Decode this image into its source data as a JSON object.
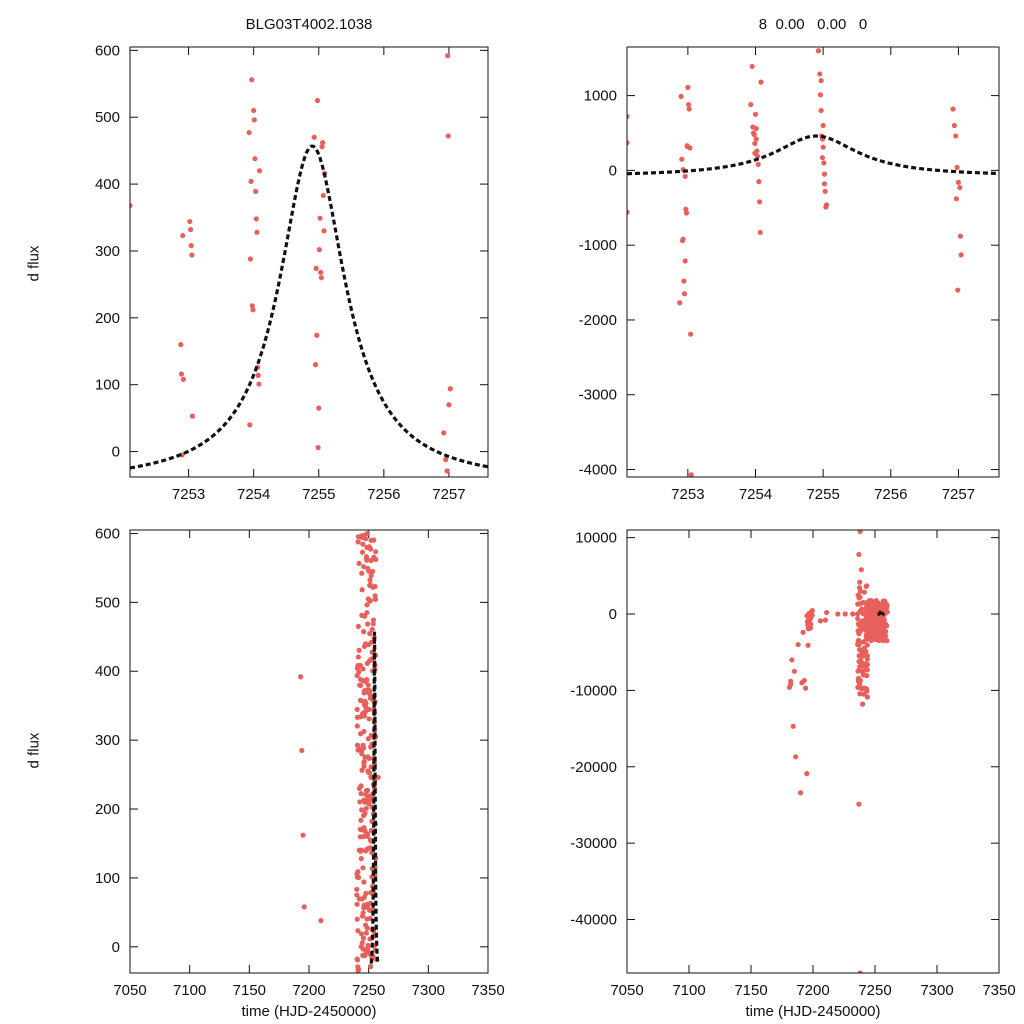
{
  "titles": {
    "left": "BLG03T4002.1038",
    "right": "8  0.00   0.00   0"
  },
  "colors": {
    "points": "#e8605c",
    "model": "#111111",
    "frame": "#111111"
  },
  "chart_data": [
    {
      "type": "scatter",
      "title": "BLG03T4002.1038",
      "xlabel": "",
      "ylabel": "d flux",
      "xlim": [
        7252.1,
        7257.6
      ],
      "ylim": [
        -38,
        605
      ],
      "xticks": [
        7253,
        7254,
        7255,
        7256,
        7257
      ],
      "yticks": [
        0,
        100,
        200,
        300,
        400,
        500,
        600
      ],
      "grid": false,
      "series": [
        {
          "x": [
            7252.1,
            7252.88,
            7252.89,
            7252.9,
            7252.91,
            7252.92,
            7253.02,
            7253.03,
            7253.04,
            7253.05,
            7253.06,
            7253.93,
            7253.94,
            7253.95,
            7253.96,
            7253.97,
            7253.98,
            7253.99,
            7254.0,
            7254.01,
            7254.02,
            7254.03,
            7254.04,
            7254.05,
            7254.06,
            7254.07,
            7254.08,
            7254.09,
            7254.93,
            7254.95,
            7254.96,
            7254.97,
            7254.98,
            7254.99,
            7255.0,
            7255.01,
            7255.02,
            7255.03,
            7255.04,
            7255.05,
            7255.06,
            7255.07,
            7255.08,
            7255.09,
            7256.92,
            7256.95,
            7256.97,
            7256.98,
            7256.99,
            7257.0,
            7257.02
          ],
          "y": [
            368,
            160,
            116,
            -5,
            323,
            108,
            344,
            332,
            308,
            294,
            53,
            477,
            40,
            288,
            404,
            556,
            218,
            212,
            510,
            496,
            438,
            389,
            348,
            328,
            126,
            114,
            101,
            420,
            470,
            130,
            274,
            174,
            525,
            6,
            65,
            302,
            349,
            268,
            260,
            456,
            462,
            383,
            330,
            416,
            28,
            -12,
            -29,
            592,
            472,
            70,
            94
          ]
        }
      ],
      "model": {
        "t0": 7254.9,
        "peak": 457,
        "width": 0.62,
        "baseline": -48
      }
    },
    {
      "type": "scatter",
      "title": "8  0.00   0.00   0",
      "xlabel": "",
      "ylabel": "",
      "xlim": [
        7252.1,
        7257.6
      ],
      "ylim": [
        -4100,
        1650
      ],
      "xticks": [
        7253,
        7254,
        7255,
        7256,
        7257
      ],
      "yticks": [
        -4000,
        -3000,
        -2000,
        -1000,
        0,
        1000
      ],
      "grid": false,
      "series": [
        {
          "x": [
            7252.1,
            7252.1,
            7252.1,
            7252.88,
            7252.9,
            7252.91,
            7252.92,
            7252.93,
            7252.94,
            7252.95,
            7252.96,
            7252.97,
            7252.98,
            7252.99,
            7253.0,
            7253.01,
            7253.02,
            7253.03,
            7253.04,
            7253.05,
            7252.99,
            7252.96,
            7252.93,
            7253.93,
            7253.95,
            7253.96,
            7253.97,
            7253.98,
            7253.99,
            7254.0,
            7254.01,
            7254.02,
            7254.03,
            7254.04,
            7254.05,
            7254.06,
            7254.07,
            7254.08,
            7253.99,
            7254.01,
            7254.93,
            7254.95,
            7254.96,
            7254.97,
            7254.98,
            7254.99,
            7255.0,
            7255.01,
            7255.02,
            7255.03,
            7255.04,
            7255.05,
            7254.97,
            7255.0,
            7255.02,
            7254.99,
            7256.92,
            7256.94,
            7256.96,
            7256.98,
            7257.0,
            7257.02,
            7257.03,
            7257.04,
            7256.99,
            7256.97
          ],
          "y": [
            720,
            370,
            -560,
            -1770,
            990,
            150,
            -940,
            -920,
            -1480,
            -1650,
            -1210,
            -520,
            -570,
            330,
            1110,
            880,
            820,
            300,
            -2190,
            -4070,
            320,
            -80,
            10,
            880,
            1390,
            580,
            500,
            480,
            360,
            750,
            420,
            260,
            190,
            80,
            -150,
            -420,
            -830,
            1180,
            230,
            560,
            1600,
            1290,
            1010,
            800,
            460,
            420,
            310,
            100,
            -180,
            -280,
            -490,
            -460,
            1200,
            600,
            -50,
            170,
            820,
            600,
            460,
            40,
            -160,
            -230,
            -880,
            -1130,
            -1600,
            -380
          ]
        }
      ],
      "model": {
        "t0": 7254.9,
        "peak": 460,
        "width": 0.75,
        "baseline": -80
      }
    },
    {
      "type": "scatter",
      "title": "",
      "xlabel": "time (HJD-2450000)",
      "ylabel": "d flux",
      "xlim": [
        7050,
        7350
      ],
      "ylim": [
        -38,
        605
      ],
      "xticks": [
        7050,
        7100,
        7150,
        7200,
        7250,
        7300,
        7350
      ],
      "yticks": [
        0,
        100,
        200,
        300,
        400,
        500,
        600
      ],
      "grid": false,
      "series": [
        {
          "x": [
            7193,
            7194,
            7195,
            7196,
            7210,
            7258,
            7249,
            7252
          ],
          "y": [
            392,
            285,
            162,
            58,
            38,
            246,
            600,
            590
          ]
        }
      ],
      "dense_clusters": [
        {
          "x_min": 7240,
          "x_max": 7256,
          "y_min": -35,
          "y_max": 600,
          "count": 260,
          "seed": 11
        }
      ],
      "model": {
        "t0": 7254.9,
        "peak": 457,
        "width": 0.62,
        "baseline": -48,
        "x_from": 7252.1,
        "x_to": 7257.6
      }
    },
    {
      "type": "scatter",
      "title": "",
      "xlabel": "time (HJD-2450000)",
      "ylabel": "",
      "xlim": [
        7050,
        7350
      ],
      "ylim": [
        -47000,
        11000
      ],
      "xticks": [
        7050,
        7100,
        7150,
        7200,
        7250,
        7300,
        7350
      ],
      "yticks": [
        -40000,
        -30000,
        -20000,
        -10000,
        0,
        10000
      ],
      "grid": false,
      "series": [
        {
          "x": [
            7183,
            7182,
            7181,
            7184,
            7186,
            7190,
            7192,
            7193,
            7194,
            7185,
            7182,
            7188,
            7195,
            7196,
            7197,
            7198,
            7191,
            7211,
            7210,
            7206,
            7220,
            7226,
            7232,
            7236,
            7238,
            7237,
            7239,
            7240,
            7241,
            7238,
            7237,
            7236,
            7240
          ],
          "y": [
            -6000,
            -9200,
            -9600,
            -14700,
            -18700,
            -23400,
            -2400,
            -8700,
            -9700,
            -7500,
            -8800,
            -4000,
            -20900,
            -4100,
            -1900,
            -600,
            -9000,
            200,
            -800,
            -900,
            0,
            0,
            0,
            0,
            10800,
            7800,
            5800,
            -11800,
            -10500,
            -47000,
            -24900,
            -4000,
            -2000
          ]
        }
      ],
      "dense_clusters": [
        {
          "x_min": 7195,
          "x_max": 7200,
          "y_min": -2500,
          "y_max": 500,
          "count": 18,
          "seed": 3
        },
        {
          "x_min": 7236,
          "x_max": 7244,
          "y_min": -11000,
          "y_max": 4500,
          "count": 90,
          "seed": 5
        },
        {
          "x_min": 7243,
          "x_max": 7260,
          "y_min": -3500,
          "y_max": 1800,
          "count": 220,
          "seed": 9
        }
      ],
      "model": {
        "t0": 7254.9,
        "peak": 460,
        "width": 0.75,
        "baseline": -80,
        "x_from": 7252.1,
        "x_to": 7257.6
      }
    }
  ]
}
